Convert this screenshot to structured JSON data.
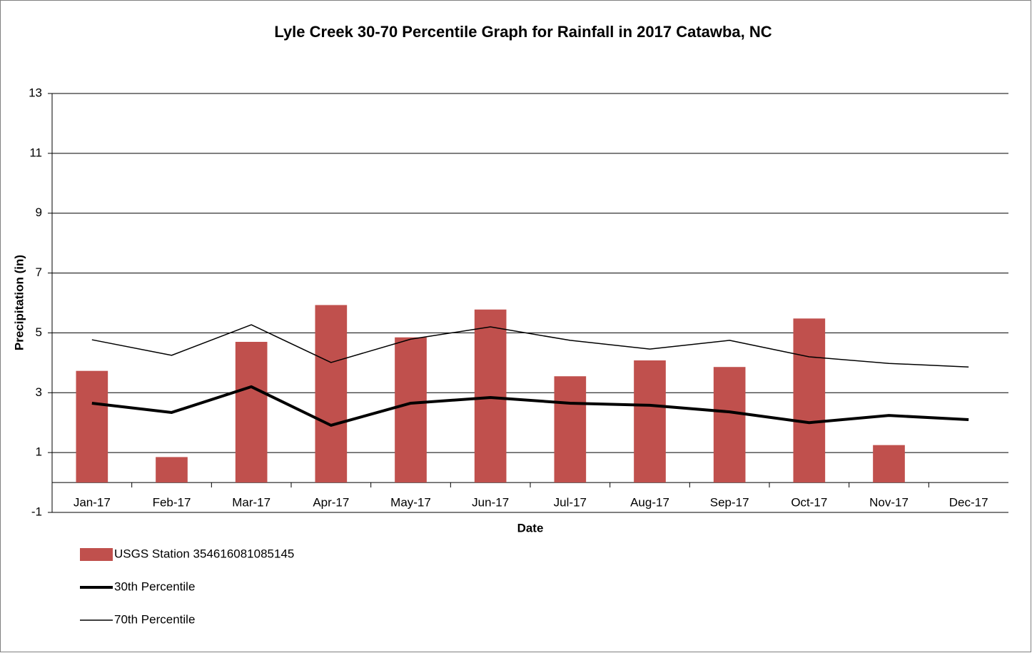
{
  "chart_data": {
    "type": "bar_line",
    "title": "Lyle Creek 30-70 Percentile Graph for Rainfall in 2017 Catawba, NC",
    "x_label": "Date",
    "y_label": "Precipitation (in)",
    "categories": [
      "Jan-17",
      "Feb-17",
      "Mar-17",
      "Apr-17",
      "May-17",
      "Jun-17",
      "Jul-17",
      "Aug-17",
      "Sep-17",
      "Oct-17",
      "Nov-17",
      "Dec-17"
    ],
    "series": [
      {
        "name": "USGS Station 354616081085145",
        "type": "bar",
        "color": "#c0504d",
        "values": [
          3.73,
          0.85,
          4.7,
          5.93,
          4.85,
          5.78,
          3.55,
          4.08,
          3.86,
          5.48,
          1.25,
          null
        ]
      },
      {
        "name": "30th Percentile",
        "type": "line",
        "color": "#000000",
        "width": 4,
        "values": [
          2.65,
          2.34,
          3.2,
          1.91,
          2.65,
          2.84,
          2.65,
          2.58,
          2.36,
          2.0,
          2.24,
          2.1
        ]
      },
      {
        "name": "70th Percentile",
        "type": "line",
        "color": "#000000",
        "width": 1.5,
        "values": [
          4.77,
          4.25,
          5.27,
          4.01,
          4.79,
          5.2,
          4.75,
          4.46,
          4.75,
          4.2,
          3.98,
          3.86
        ]
      }
    ],
    "ylim": [
      -1,
      13
    ],
    "yticks": [
      -1,
      1,
      3,
      5,
      7,
      9,
      11,
      13
    ],
    "grid": true,
    "legend": "bottom-left"
  }
}
